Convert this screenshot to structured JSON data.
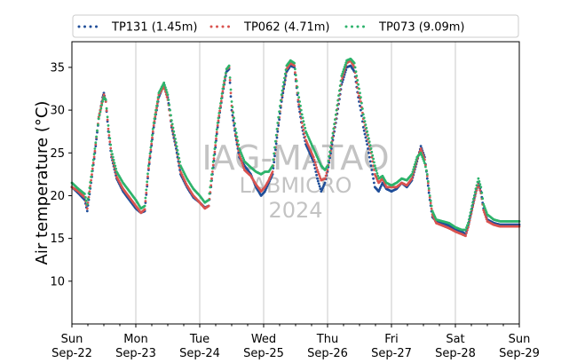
{
  "chart_data": {
    "type": "scatter",
    "ylabel": "Air temperature (°C)",
    "xlabel": "",
    "ylim": [
      5,
      38
    ],
    "yticks": [
      10,
      15,
      20,
      25,
      30,
      35
    ],
    "xlim": [
      "2024-09-22",
      "2024-09-29"
    ],
    "xticks": [
      {
        "day": "Sun",
        "date": "Sep-22"
      },
      {
        "day": "Mon",
        "date": "Sep-23"
      },
      {
        "day": "Tue",
        "date": "Sep-24"
      },
      {
        "day": "Wed",
        "date": "Sep-25"
      },
      {
        "day": "Thu",
        "date": "Sep-26"
      },
      {
        "day": "Fri",
        "date": "Sep-27"
      },
      {
        "day": "Sat",
        "date": "Sep-28"
      },
      {
        "day": "Sun",
        "date": "Sep-29"
      }
    ],
    "grid": "vertical",
    "legend_position": "top",
    "watermark": [
      "IAG-MATAO",
      "LABMICRO",
      "2024"
    ],
    "series": [
      {
        "name": "TP131 (1.45m)",
        "color": "#1f4e99",
        "points": [
          [
            0.0,
            21.0
          ],
          [
            0.1,
            20.3
          ],
          [
            0.2,
            19.5
          ],
          [
            0.24,
            18.2
          ],
          [
            0.3,
            21.5
          ],
          [
            0.36,
            25.0
          ],
          [
            0.42,
            29.0
          ],
          [
            0.48,
            31.5
          ],
          [
            0.5,
            32.0
          ],
          [
            0.53,
            31.0
          ],
          [
            0.57,
            27.5
          ],
          [
            0.62,
            24.5
          ],
          [
            0.7,
            22.0
          ],
          [
            0.8,
            20.5
          ],
          [
            0.9,
            19.5
          ],
          [
            1.0,
            18.5
          ],
          [
            1.08,
            18.0
          ],
          [
            1.14,
            18.2
          ],
          [
            1.2,
            23.0
          ],
          [
            1.28,
            28.0
          ],
          [
            1.36,
            31.5
          ],
          [
            1.44,
            33.0
          ],
          [
            1.5,
            31.5
          ],
          [
            1.56,
            28.0
          ],
          [
            1.63,
            25.5
          ],
          [
            1.7,
            22.5
          ],
          [
            1.8,
            21.0
          ],
          [
            1.9,
            19.8
          ],
          [
            2.0,
            19.2
          ],
          [
            2.08,
            18.6
          ],
          [
            2.14,
            18.8
          ],
          [
            2.2,
            22.5
          ],
          [
            2.28,
            28.0
          ],
          [
            2.36,
            32.0
          ],
          [
            2.42,
            34.5
          ],
          [
            2.46,
            34.8
          ],
          [
            2.5,
            30.0
          ],
          [
            2.56,
            27.0
          ],
          [
            2.62,
            24.5
          ],
          [
            2.7,
            23.5
          ],
          [
            2.8,
            22.5
          ],
          [
            2.88,
            21.0
          ],
          [
            2.96,
            20.0
          ],
          [
            3.02,
            20.5
          ],
          [
            3.08,
            21.5
          ],
          [
            3.14,
            22.5
          ],
          [
            3.22,
            27.5
          ],
          [
            3.28,
            31.0
          ],
          [
            3.36,
            34.5
          ],
          [
            3.42,
            35.2
          ],
          [
            3.48,
            35.0
          ],
          [
            3.54,
            31.0
          ],
          [
            3.6,
            28.0
          ],
          [
            3.66,
            26.0
          ],
          [
            3.72,
            25.0
          ],
          [
            3.78,
            24.0
          ],
          [
            3.84,
            22.0
          ],
          [
            3.9,
            20.5
          ],
          [
            3.96,
            21.5
          ],
          [
            4.0,
            22.8
          ],
          [
            4.06,
            25.5
          ],
          [
            4.14,
            29.0
          ],
          [
            4.22,
            33.0
          ],
          [
            4.3,
            35.0
          ],
          [
            4.36,
            35.2
          ],
          [
            4.42,
            34.5
          ],
          [
            4.48,
            31.5
          ],
          [
            4.52,
            30.0
          ],
          [
            4.56,
            28.0
          ],
          [
            4.62,
            26.0
          ],
          [
            4.68,
            23.5
          ],
          [
            4.74,
            21.0
          ],
          [
            4.8,
            20.5
          ],
          [
            4.86,
            21.5
          ],
          [
            4.92,
            20.8
          ],
          [
            5.0,
            20.5
          ],
          [
            5.08,
            20.8
          ],
          [
            5.16,
            21.5
          ],
          [
            5.24,
            21.0
          ],
          [
            5.32,
            21.8
          ],
          [
            5.4,
            24.0
          ],
          [
            5.46,
            25.8
          ],
          [
            5.52,
            24.5
          ],
          [
            5.56,
            22.0
          ],
          [
            5.6,
            19.5
          ],
          [
            5.64,
            17.5
          ],
          [
            5.7,
            17.0
          ],
          [
            5.8,
            16.8
          ],
          [
            5.9,
            16.5
          ],
          [
            6.0,
            16.0
          ],
          [
            6.1,
            15.8
          ],
          [
            6.16,
            15.5
          ],
          [
            6.2,
            16.5
          ],
          [
            6.26,
            18.5
          ],
          [
            6.32,
            20.5
          ],
          [
            6.36,
            21.5
          ],
          [
            6.4,
            20.5
          ],
          [
            6.44,
            18.5
          ],
          [
            6.5,
            17.2
          ],
          [
            6.6,
            16.8
          ],
          [
            6.7,
            16.6
          ],
          [
            6.8,
            16.6
          ],
          [
            7.0,
            16.6
          ]
        ]
      },
      {
        "name": "TP062 (4.71m)",
        "color": "#d9534f",
        "points": [
          [
            0.0,
            21.0
          ],
          [
            0.1,
            20.5
          ],
          [
            0.2,
            19.8
          ],
          [
            0.24,
            18.5
          ],
          [
            0.3,
            21.8
          ],
          [
            0.36,
            25.2
          ],
          [
            0.42,
            29.2
          ],
          [
            0.48,
            31.2
          ],
          [
            0.5,
            31.8
          ],
          [
            0.53,
            31.0
          ],
          [
            0.57,
            27.8
          ],
          [
            0.62,
            24.8
          ],
          [
            0.7,
            22.2
          ],
          [
            0.8,
            20.8
          ],
          [
            0.9,
            19.8
          ],
          [
            1.0,
            18.8
          ],
          [
            1.08,
            18.0
          ],
          [
            1.14,
            18.4
          ],
          [
            1.2,
            23.2
          ],
          [
            1.28,
            28.2
          ],
          [
            1.36,
            31.8
          ],
          [
            1.44,
            32.8
          ],
          [
            1.5,
            31.2
          ],
          [
            1.56,
            28.2
          ],
          [
            1.63,
            25.8
          ],
          [
            1.7,
            22.8
          ],
          [
            1.8,
            21.2
          ],
          [
            1.9,
            20.0
          ],
          [
            2.0,
            19.2
          ],
          [
            2.08,
            18.5
          ],
          [
            2.14,
            18.8
          ],
          [
            2.2,
            22.8
          ],
          [
            2.28,
            28.2
          ],
          [
            2.36,
            32.2
          ],
          [
            2.42,
            34.8
          ],
          [
            2.46,
            35.0
          ],
          [
            2.5,
            30.5
          ],
          [
            2.56,
            27.2
          ],
          [
            2.62,
            24.8
          ],
          [
            2.7,
            23.0
          ],
          [
            2.8,
            22.3
          ],
          [
            2.88,
            21.3
          ],
          [
            2.96,
            20.5
          ],
          [
            3.02,
            21.0
          ],
          [
            3.08,
            21.8
          ],
          [
            3.14,
            22.8
          ],
          [
            3.22,
            27.8
          ],
          [
            3.28,
            31.2
          ],
          [
            3.36,
            34.8
          ],
          [
            3.42,
            35.5
          ],
          [
            3.48,
            35.2
          ],
          [
            3.54,
            31.2
          ],
          [
            3.6,
            28.5
          ],
          [
            3.66,
            26.5
          ],
          [
            3.72,
            25.5
          ],
          [
            3.78,
            24.5
          ],
          [
            3.84,
            23.0
          ],
          [
            3.9,
            21.8
          ],
          [
            3.96,
            22.0
          ],
          [
            4.0,
            23.0
          ],
          [
            4.06,
            25.8
          ],
          [
            4.14,
            29.5
          ],
          [
            4.22,
            33.5
          ],
          [
            4.3,
            35.5
          ],
          [
            4.36,
            35.8
          ],
          [
            4.42,
            35.0
          ],
          [
            4.48,
            32.0
          ],
          [
            4.52,
            31.0
          ],
          [
            4.56,
            29.0
          ],
          [
            4.62,
            27.0
          ],
          [
            4.68,
            25.0
          ],
          [
            4.74,
            22.5
          ],
          [
            4.8,
            21.5
          ],
          [
            4.86,
            22.0
          ],
          [
            4.92,
            21.0
          ],
          [
            5.0,
            21.0
          ],
          [
            5.08,
            21.0
          ],
          [
            5.16,
            21.5
          ],
          [
            5.24,
            21.2
          ],
          [
            5.32,
            22.0
          ],
          [
            5.4,
            24.2
          ],
          [
            5.46,
            25.5
          ],
          [
            5.52,
            24.2
          ],
          [
            5.56,
            22.3
          ],
          [
            5.6,
            19.8
          ],
          [
            5.64,
            17.8
          ],
          [
            5.7,
            16.8
          ],
          [
            5.8,
            16.5
          ],
          [
            5.9,
            16.2
          ],
          [
            6.0,
            15.8
          ],
          [
            6.1,
            15.5
          ],
          [
            6.16,
            15.3
          ],
          [
            6.2,
            16.3
          ],
          [
            6.26,
            18.3
          ],
          [
            6.32,
            20.3
          ],
          [
            6.36,
            21.3
          ],
          [
            6.4,
            20.3
          ],
          [
            6.44,
            18.3
          ],
          [
            6.5,
            17.0
          ],
          [
            6.6,
            16.6
          ],
          [
            6.7,
            16.4
          ],
          [
            6.8,
            16.4
          ],
          [
            7.0,
            16.4
          ]
        ]
      },
      {
        "name": "TP073 (9.09m)",
        "color": "#2db36b",
        "points": [
          [
            0.0,
            21.5
          ],
          [
            0.1,
            20.8
          ],
          [
            0.2,
            20.2
          ],
          [
            0.24,
            19.0
          ],
          [
            0.3,
            22.2
          ],
          [
            0.36,
            25.5
          ],
          [
            0.42,
            29.0
          ],
          [
            0.48,
            31.0
          ],
          [
            0.5,
            31.5
          ],
          [
            0.53,
            31.2
          ],
          [
            0.57,
            28.2
          ],
          [
            0.62,
            25.2
          ],
          [
            0.7,
            22.8
          ],
          [
            0.8,
            21.5
          ],
          [
            0.9,
            20.5
          ],
          [
            1.0,
            19.5
          ],
          [
            1.08,
            18.5
          ],
          [
            1.14,
            18.8
          ],
          [
            1.2,
            23.5
          ],
          [
            1.28,
            28.5
          ],
          [
            1.36,
            32.0
          ],
          [
            1.44,
            33.2
          ],
          [
            1.5,
            31.8
          ],
          [
            1.56,
            28.8
          ],
          [
            1.63,
            26.2
          ],
          [
            1.7,
            23.5
          ],
          [
            1.8,
            22.0
          ],
          [
            1.9,
            20.8
          ],
          [
            2.0,
            20.0
          ],
          [
            2.08,
            19.2
          ],
          [
            2.14,
            19.5
          ],
          [
            2.2,
            23.2
          ],
          [
            2.28,
            28.5
          ],
          [
            2.36,
            32.5
          ],
          [
            2.42,
            34.8
          ],
          [
            2.46,
            35.2
          ],
          [
            2.5,
            31.0
          ],
          [
            2.56,
            27.8
          ],
          [
            2.62,
            25.5
          ],
          [
            2.7,
            24.0
          ],
          [
            2.8,
            23.3
          ],
          [
            2.88,
            22.8
          ],
          [
            2.96,
            22.5
          ],
          [
            3.02,
            22.8
          ],
          [
            3.08,
            22.8
          ],
          [
            3.14,
            23.5
          ],
          [
            3.22,
            28.5
          ],
          [
            3.28,
            31.8
          ],
          [
            3.36,
            35.2
          ],
          [
            3.42,
            35.8
          ],
          [
            3.48,
            35.5
          ],
          [
            3.54,
            32.0
          ],
          [
            3.6,
            29.5
          ],
          [
            3.66,
            27.5
          ],
          [
            3.72,
            26.5
          ],
          [
            3.78,
            25.5
          ],
          [
            3.84,
            24.5
          ],
          [
            3.9,
            23.5
          ],
          [
            3.96,
            23.0
          ],
          [
            4.0,
            23.5
          ],
          [
            4.06,
            26.2
          ],
          [
            4.14,
            30.0
          ],
          [
            4.22,
            34.0
          ],
          [
            4.3,
            35.8
          ],
          [
            4.36,
            36.0
          ],
          [
            4.42,
            35.5
          ],
          [
            4.48,
            33.0
          ],
          [
            4.52,
            31.5
          ],
          [
            4.56,
            29.5
          ],
          [
            4.62,
            27.5
          ],
          [
            4.68,
            25.5
          ],
          [
            4.74,
            23.5
          ],
          [
            4.8,
            22.0
          ],
          [
            4.86,
            22.3
          ],
          [
            4.92,
            21.5
          ],
          [
            5.0,
            21.2
          ],
          [
            5.08,
            21.5
          ],
          [
            5.16,
            22.0
          ],
          [
            5.24,
            21.8
          ],
          [
            5.32,
            22.5
          ],
          [
            5.4,
            24.5
          ],
          [
            5.46,
            25.0
          ],
          [
            5.52,
            23.8
          ],
          [
            5.56,
            22.5
          ],
          [
            5.6,
            20.0
          ],
          [
            5.64,
            18.2
          ],
          [
            5.7,
            17.2
          ],
          [
            5.8,
            17.0
          ],
          [
            5.9,
            16.8
          ],
          [
            6.0,
            16.3
          ],
          [
            6.1,
            16.0
          ],
          [
            6.16,
            16.0
          ],
          [
            6.2,
            16.8
          ],
          [
            6.26,
            18.8
          ],
          [
            6.32,
            20.8
          ],
          [
            6.36,
            22.0
          ],
          [
            6.4,
            21.0
          ],
          [
            6.44,
            19.0
          ],
          [
            6.5,
            17.8
          ],
          [
            6.6,
            17.2
          ],
          [
            6.7,
            17.0
          ],
          [
            6.8,
            17.0
          ],
          [
            7.0,
            17.0
          ]
        ]
      }
    ]
  }
}
